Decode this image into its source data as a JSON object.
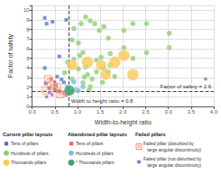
{
  "chart_data": {
    "type": "scatter",
    "xlabel": "Width-to-height ratio",
    "ylabel": "Factor of safety",
    "xlim": [
      0.0,
      4.0
    ],
    "ylim": [
      0.0,
      10.5
    ],
    "xticks": [
      {
        "value": 0,
        "label": "0.0"
      },
      0.5,
      {
        "value": 1,
        "label": "1.0"
      },
      1.5,
      {
        "value": 2,
        "label": "2.0"
      },
      2.5,
      {
        "value": 3,
        "label": "3.0"
      },
      3.5,
      {
        "value": 4,
        "label": "4.0"
      }
    ],
    "yticks": [
      0,
      1,
      2,
      3,
      4,
      5,
      6,
      7,
      8,
      9,
      10
    ],
    "grid": true,
    "legend": "bottom",
    "reference_lines": [
      {
        "axis": "x",
        "value": 0.8,
        "label": "Width to height ratio = 0.8"
      },
      {
        "axis": "y",
        "value": 1.6,
        "label": "Factor of safety = 1.6"
      }
    ],
    "series": [
      {
        "name": "Tens of pillars",
        "group": "Current pillar layouts",
        "marker": "square",
        "values": [
          [
            0.28,
            9.2
          ],
          [
            0.32,
            8.6
          ],
          [
            0.45,
            8.8
          ],
          [
            0.28,
            4.0
          ],
          [
            0.55,
            3.1
          ],
          [
            0.65,
            2.8
          ],
          [
            0.7,
            2.5
          ],
          [
            0.38,
            1.9
          ],
          [
            0.5,
            1.75
          ],
          [
            0.6,
            1.55
          ],
          [
            0.3,
            2.4
          ],
          [
            0.6,
            5.2
          ],
          [
            0.75,
            9.0
          ]
        ],
        "sizes": [
          7,
          7,
          7,
          7,
          7,
          7,
          7,
          7,
          7,
          7,
          7,
          7,
          7
        ]
      },
      {
        "name": "Hundreds of pillars",
        "group": "Current pillar layouts",
        "marker": "circle",
        "values": [
          [
            0.72,
            3.5
          ],
          [
            0.78,
            4.6
          ],
          [
            0.88,
            2.85
          ],
          [
            0.95,
            1.75
          ],
          [
            1.05,
            5.3
          ],
          [
            1.02,
            3.9
          ],
          [
            1.18,
            4.1
          ],
          [
            1.22,
            3.3
          ],
          [
            1.32,
            2.85
          ],
          [
            1.12,
            2.45
          ],
          [
            1.15,
            3.05
          ],
          [
            1.28,
            2.05
          ],
          [
            1.42,
            3.6
          ],
          [
            1.52,
            5.1
          ],
          [
            1.58,
            3.9
          ],
          [
            1.68,
            3.6
          ],
          [
            1.72,
            4.3
          ],
          [
            1.82,
            3.1
          ],
          [
            0.92,
            4.9
          ],
          [
            1.02,
            6.6
          ],
          [
            1.12,
            5.6
          ],
          [
            0.88,
            6.9
          ],
          [
            0.92,
            8.1
          ],
          [
            1.08,
            8.6
          ],
          [
            1.18,
            9.3
          ],
          [
            1.28,
            8.9
          ],
          [
            1.38,
            8.6
          ],
          [
            1.48,
            7.9
          ],
          [
            1.58,
            8.3
          ],
          [
            1.68,
            7.1
          ],
          [
            2.02,
            7.9
          ],
          [
            2.22,
            8.6
          ],
          [
            2.52,
            8.6
          ],
          [
            3.02,
            7.6
          ],
          [
            2.02,
            6.1
          ],
          [
            2.52,
            5.6
          ],
          [
            3.02,
            6.1
          ],
          [
            1.42,
            4.8
          ],
          [
            1.72,
            5.5
          ],
          [
            2.22,
            5.0
          ],
          [
            1.55,
            2.5
          ],
          [
            1.25,
            1.7
          ]
        ],
        "sizes": [
          14,
          14,
          14,
          14,
          14,
          14,
          14,
          14,
          14,
          14,
          14,
          14,
          14,
          14,
          14,
          14,
          14,
          14,
          14,
          14,
          14,
          14,
          14,
          14,
          14,
          14,
          14,
          14,
          14,
          14,
          14,
          14,
          14,
          14,
          14,
          14,
          14,
          14,
          14,
          14,
          14,
          14
        ]
      },
      {
        "name": "Thousands pillars",
        "group": "Current pillar layouts",
        "marker": "circle",
        "values": [
          [
            0.88,
            4.3
          ],
          [
            1.22,
            4.6
          ],
          [
            1.52,
            4.3
          ],
          [
            1.82,
            4.6
          ],
          [
            2.02,
            5.3
          ],
          [
            2.22,
            3.3
          ],
          [
            1.62,
            3.3
          ]
        ],
        "sizes": [
          55,
          65,
          55,
          65,
          65,
          65,
          55
        ]
      },
      {
        "name": "Tens of pillars",
        "group": "Abandoned pillar layouts",
        "marker": "square",
        "values": [
          [
            0.6,
            1.6
          ],
          [
            0.7,
            1.4
          ],
          [
            0.75,
            1.2
          ],
          [
            0.8,
            1.85
          ],
          [
            0.42,
            2.85
          ],
          [
            0.52,
            2.2
          ]
        ],
        "sizes": [
          7,
          7,
          7,
          7,
          7,
          7
        ]
      },
      {
        "name": "Hundreds of pillars",
        "group": "Abandoned pillar layouts",
        "marker": "circle",
        "values": [
          [
            0.78,
            2.05
          ],
          [
            0.88,
            1.55
          ],
          [
            0.92,
            2.55
          ],
          [
            1.02,
            1.65
          ],
          [
            1.12,
            2.05
          ]
        ],
        "sizes": [
          14,
          14,
          14,
          14,
          14
        ]
      },
      {
        "name": "* Thousands pillars",
        "group": "Abandoned pillar layouts",
        "marker": "circle",
        "values": [
          [
            0.82,
            1.65
          ]
        ],
        "sizes": [
          55
        ]
      },
      {
        "name": "Failed pillar (disturbed by\n   large angular discontinuity)",
        "group": "Failed pillars",
        "marker": "x",
        "values": [
          [
            0.35,
            2.85
          ],
          [
            0.42,
            2.25
          ],
          [
            0.48,
            1.85
          ],
          [
            0.3,
            1.65
          ],
          [
            0.55,
            2.05
          ],
          [
            0.62,
            1.25
          ]
        ],
        "sizes": [
          8,
          8,
          8,
          8,
          8,
          8
        ]
      },
      {
        "name": "Failed pillar (not disturbed by\n   large angular discontinuity)",
        "group": "Failed pillars",
        "marker": "square",
        "values": [
          [
            0.32,
            1.0
          ],
          [
            0.38,
            1.45
          ],
          [
            0.44,
            1.22
          ],
          [
            0.5,
            2.55
          ],
          [
            3.82,
            2.85
          ]
        ],
        "sizes": [
          5,
          5,
          5,
          5,
          5
        ]
      }
    ]
  }
}
